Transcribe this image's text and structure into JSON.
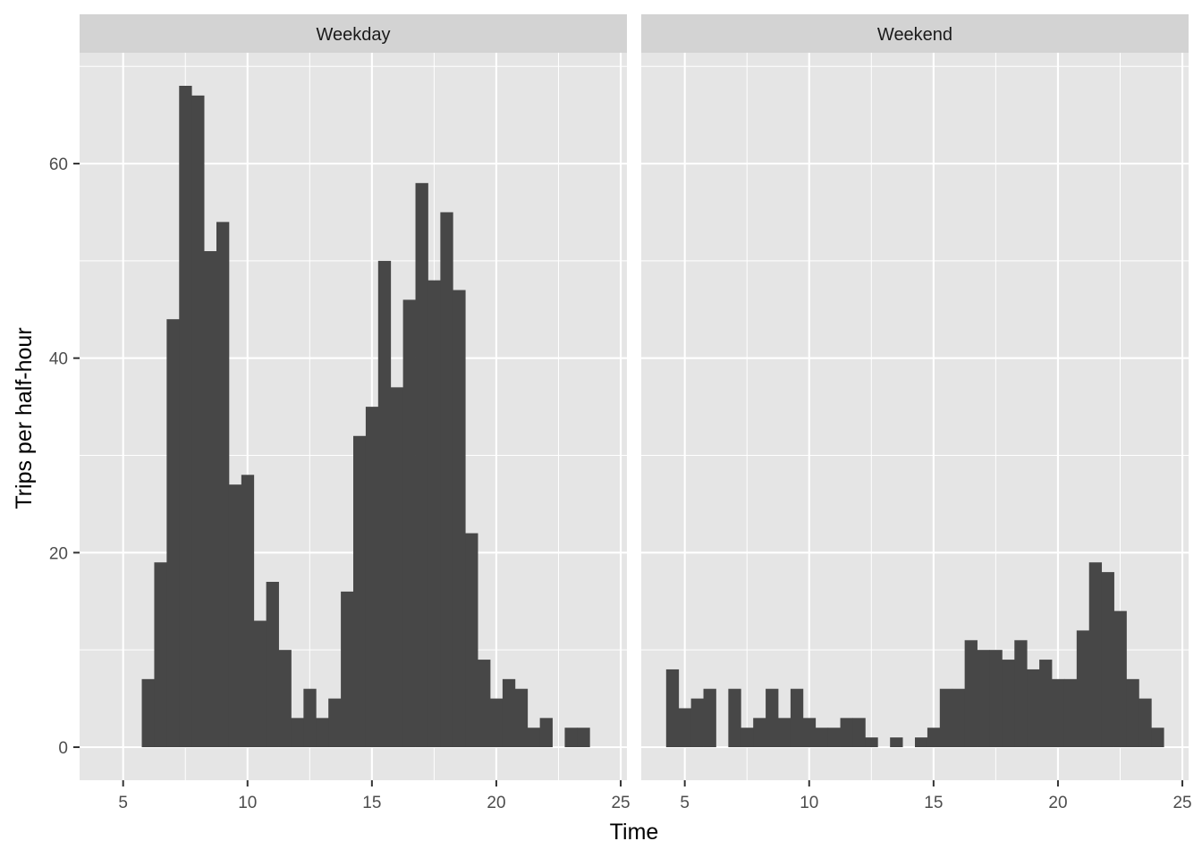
{
  "chart_data": {
    "type": "bar",
    "title": "",
    "xlabel": "Time",
    "ylabel": "Trips per half-hour",
    "bin_width": 0.5,
    "xlim": [
      3.25,
      25.25
    ],
    "ylim": [
      -3.4,
      71.4
    ],
    "x_ticks": [
      5,
      10,
      15,
      20,
      25
    ],
    "y_ticks": [
      0,
      20,
      40,
      60
    ],
    "grid": true,
    "colors": {
      "bar": "#474747",
      "panel_bg": "#e5e5e5",
      "strip_bg": "#d3d3d3",
      "grid": "#ffffff",
      "tick": "#333333"
    },
    "panels": [
      {
        "label": "Weekday",
        "x": [
          6,
          6.5,
          7,
          7.5,
          8,
          8.5,
          9,
          9.5,
          10,
          10.5,
          11,
          11.5,
          12,
          12.5,
          13,
          13.5,
          14,
          14.5,
          15,
          15.5,
          16,
          16.5,
          17,
          17.5,
          18,
          18.5,
          19,
          19.5,
          20,
          20.5,
          21,
          21.5,
          22,
          22.5,
          23,
          23.5
        ],
        "values": [
          7,
          19,
          44,
          68,
          67,
          51,
          54,
          27,
          28,
          13,
          17,
          10,
          3,
          6,
          3,
          5,
          16,
          32,
          35,
          50,
          37,
          46,
          58,
          48,
          55,
          47,
          22,
          9,
          5,
          7,
          6,
          2,
          3,
          0,
          2,
          2
        ]
      },
      {
        "label": "Weekend",
        "x": [
          4.5,
          5,
          5.5,
          6,
          6.5,
          7,
          7.5,
          8,
          8.5,
          9,
          9.5,
          10,
          10.5,
          11,
          11.5,
          12,
          12.5,
          13,
          13.5,
          14,
          14.5,
          15,
          15.5,
          16,
          16.5,
          17,
          17.5,
          18,
          18.5,
          19,
          19.5,
          20,
          20.5,
          21,
          21.5,
          22,
          22.5,
          23,
          23.5,
          24
        ],
        "values": [
          8,
          4,
          5,
          6,
          0,
          6,
          2,
          3,
          6,
          3,
          6,
          3,
          2,
          2,
          3,
          3,
          1,
          0,
          1,
          0,
          1,
          2,
          6,
          6,
          11,
          10,
          10,
          9,
          11,
          8,
          9,
          7,
          7,
          12,
          19,
          18,
          14,
          7,
          5,
          2
        ]
      }
    ]
  }
}
